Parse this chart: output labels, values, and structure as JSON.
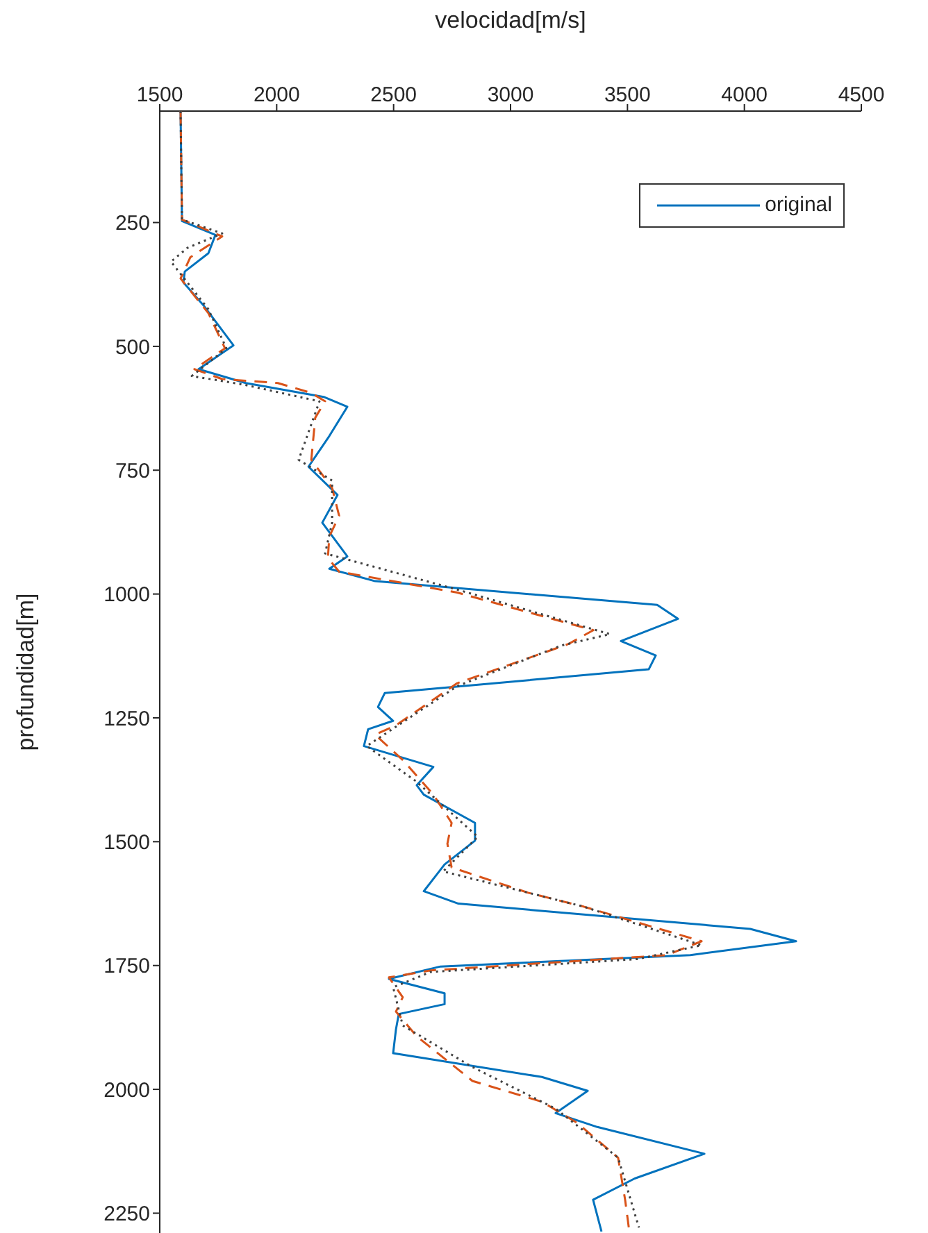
{
  "chart_data": {
    "type": "line",
    "xlabel": "velocidad[m/s]",
    "ylabel": "profundidad[m]",
    "xlim": [
      1500,
      4500
    ],
    "xticks": [
      1500,
      2000,
      2500,
      3000,
      3500,
      4000,
      4500
    ],
    "ylim": [
      2290,
      25
    ],
    "yticks": [
      250,
      500,
      750,
      1000,
      1250,
      1500,
      1750,
      2000,
      2250
    ],
    "legend": "top right",
    "grid": false,
    "series": [
      {
        "name": "original",
        "color": "#0072bd",
        "line_style": "solid",
        "values": [
          25,
          247,
          275,
          312,
          349,
          371,
          419,
          498,
          546,
          574,
          602,
          622,
          681,
          743,
          800,
          856,
          924,
          949,
          974,
          1022,
          1050,
          1095,
          1124,
          1152,
          1200,
          1228,
          1256,
          1273,
          1307,
          1349,
          1386,
          1405,
          1462,
          1498,
          1546,
          1600,
          1625,
          1676,
          1701,
          1729,
          1752,
          1777,
          1806,
          1828,
          1848,
          1879,
          1927,
          1975,
          2003,
          2048,
          2076,
          2130,
          2180,
          2223,
          2287
        ],
        "x": [
          1589,
          1595,
          1738,
          1708,
          1607,
          1601,
          1690,
          1815,
          1666,
          1868,
          2201,
          2302,
          2225,
          2136,
          2260,
          2195,
          2302,
          2225,
          2421,
          3627,
          3716,
          3472,
          3621,
          3591,
          2462,
          2433,
          2498,
          2391,
          2373,
          2670,
          2599,
          2629,
          2848,
          2848,
          2718,
          2629,
          2777,
          4025,
          4221,
          3769,
          2700,
          2480,
          2718,
          2718,
          2522,
          2510,
          2498,
          3134,
          3330,
          3193,
          3371,
          3829,
          3531,
          3353,
          3389
        ]
      },
      {
        "color": "#d95319",
        "line_style": "dashed",
        "values": [
          25,
          244,
          278,
          320,
          363,
          433,
          504,
          546,
          566,
          574,
          594,
          611,
          644,
          729,
          786,
          842,
          884,
          927,
          955,
          997,
          1073,
          1101,
          1180,
          1265,
          1284,
          1335,
          1405,
          1462,
          1504,
          1552,
          1603,
          1631,
          1701,
          1729,
          1760,
          1774,
          1814,
          1843,
          1893,
          1983,
          2025,
          2067,
          2138,
          2223,
          2287
        ],
        "x": [
          1589,
          1595,
          1767,
          1631,
          1589,
          1708,
          1779,
          1648,
          1767,
          2005,
          2148,
          2207,
          2165,
          2148,
          2237,
          2267,
          2225,
          2219,
          2267,
          2772,
          3354,
          3247,
          2772,
          2510,
          2421,
          2539,
          2670,
          2748,
          2730,
          2748,
          3075,
          3312,
          3817,
          3668,
          2658,
          2480,
          2539,
          2510,
          2599,
          2837,
          3134,
          3283,
          3460,
          3490,
          3508
        ]
      },
      {
        "color": "#404040",
        "line_style": "dotted",
        "values": [
          25,
          244,
          272,
          301,
          329,
          425,
          504,
          560,
          577,
          611,
          729,
          771,
          856,
          918,
          991,
          1081,
          1104,
          1186,
          1307,
          1377,
          1490,
          1560,
          1631,
          1709,
          1737,
          1763,
          1794,
          1871,
          1955,
          2039,
          2138,
          2279
        ],
        "x": [
          1589,
          1595,
          1767,
          1619,
          1548,
          1708,
          1785,
          1637,
          1857,
          2183,
          2094,
          2237,
          2237,
          2207,
          2772,
          3425,
          3217,
          2772,
          2385,
          2593,
          2860,
          2712,
          3312,
          3817,
          3543,
          2658,
          2498,
          2539,
          2837,
          3193,
          3460,
          3549
        ]
      }
    ]
  }
}
